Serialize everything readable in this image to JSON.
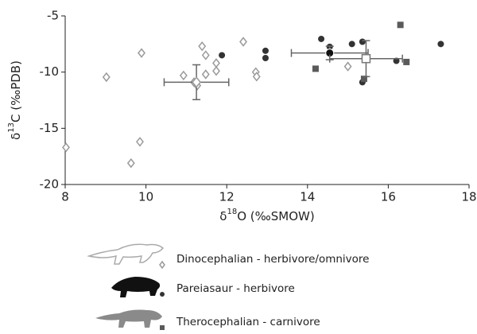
{
  "chart_data": {
    "type": "scatter",
    "xlabel": {
      "prefix": "δ",
      "sup": "18",
      "rest": "O  (‰SMOW)"
    },
    "ylabel": {
      "prefix": "δ",
      "sup": "13",
      "rest": "C  (‰PDB)"
    },
    "xlim": [
      8,
      18
    ],
    "xticks": [
      8,
      10,
      12,
      14,
      16,
      18
    ],
    "ylim": [
      -20,
      -5
    ],
    "yticks": [
      -5,
      -10,
      -15,
      -20
    ],
    "series": [
      {
        "name": "Dinocephalian - herbivore/omnivore",
        "color": "#9a9a9a",
        "marker": "diamond",
        "x": [
          8.02,
          9.02,
          9.89,
          9.63,
          9.85,
          10.93,
          11.19,
          11.27,
          11.39,
          11.48,
          11.48,
          11.74,
          11.74,
          12.41,
          12.72,
          12.74,
          15.0
        ],
        "values": [
          -16.7,
          -10.45,
          -8.3,
          -18.1,
          -16.2,
          -10.3,
          -10.9,
          -11.2,
          -7.7,
          -8.5,
          -10.2,
          -9.2,
          -9.9,
          -7.3,
          -10.0,
          -10.4,
          -9.5
        ],
        "mean": {
          "x": 11.25,
          "y": -10.9,
          "xerr": 0.8,
          "yerr": 1.55
        }
      },
      {
        "name": "Pareiasaur - herbivore",
        "color": "#333333",
        "marker": "circle",
        "x": [
          11.88,
          12.96,
          12.96,
          14.34,
          14.55,
          15.1,
          15.36,
          15.36,
          16.2,
          17.3
        ],
        "values": [
          -8.5,
          -8.1,
          -8.75,
          -7.05,
          -7.75,
          -7.5,
          -7.3,
          -10.9,
          -9.0,
          -7.5
        ],
        "mean": {
          "x": 14.55,
          "y": -8.3,
          "xerr": 0.95,
          "yerr": 0.6
        }
      },
      {
        "name": "Therocephalian - carnivore",
        "color": "#5a5a5a",
        "marker": "square",
        "x": [
          14.2,
          16.3,
          15.4,
          16.45
        ],
        "values": [
          -9.7,
          -5.8,
          -10.6,
          -9.1
        ],
        "mean": {
          "x": 15.45,
          "y": -8.8,
          "xerr": 0.9,
          "yerr": 1.6
        }
      }
    ]
  }
}
